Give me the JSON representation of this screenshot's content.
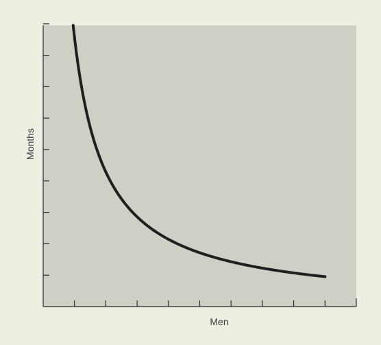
{
  "chart_data": {
    "type": "line",
    "title": "",
    "xlabel": "Men",
    "ylabel": "Months",
    "x_ticks": 9,
    "y_ticks": 9,
    "grid": false,
    "legend": "none",
    "curve_shape": "hyperbola",
    "series": [
      {
        "x": [
          1,
          1.25,
          1.5,
          2,
          2.5,
          3,
          4,
          5,
          6,
          7,
          8,
          9
        ],
        "y": [
          9.0,
          7.2,
          6.0,
          4.5,
          3.6,
          3.0,
          2.25,
          1.8,
          1.5,
          1.29,
          1.125,
          1.0
        ]
      }
    ],
    "xlim": [
      0,
      10
    ],
    "ylim": [
      0,
      9.4
    ]
  },
  "colors": {
    "page_background": "#efeee2",
    "plot_background": "#cfcfc6",
    "axis": "#2b2b2b",
    "curve": "#1f1f1f",
    "label": "#3a3a3a"
  }
}
